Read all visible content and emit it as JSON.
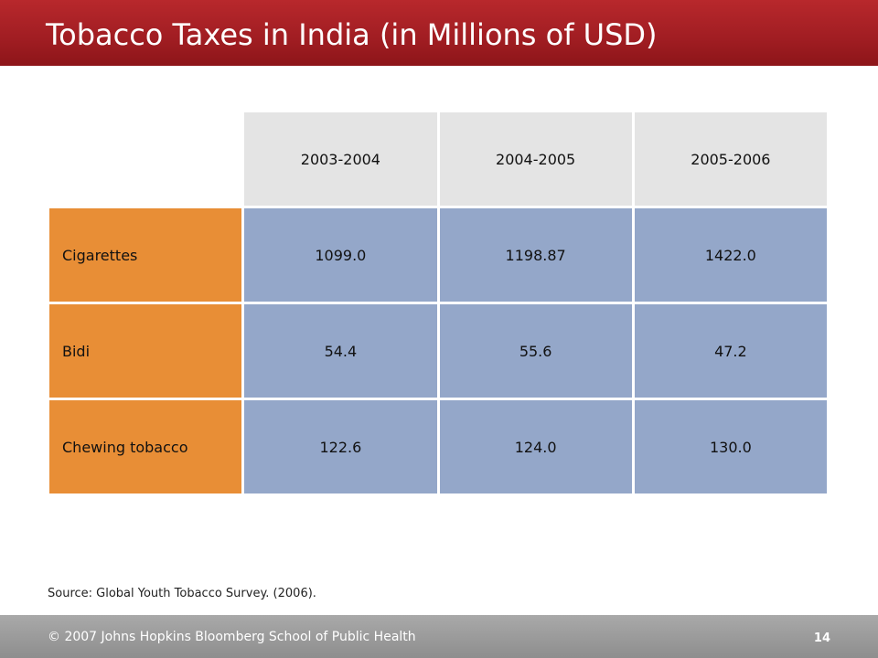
{
  "slide": {
    "title": "Tobacco Taxes in India (in Millions of USD)",
    "source": "Source: Global Youth Tobacco Survey. (2006).",
    "footer": "© 2007 Johns Hopkins Bloomberg School of Public Health",
    "page_number": "14"
  },
  "table": {
    "columns": [
      "2003-2004",
      "2004-2005",
      "2005-2006"
    ],
    "rows": [
      {
        "label": "Cigarettes",
        "values": [
          "1099.0",
          "1198.87",
          "1422.0"
        ]
      },
      {
        "label": "Bidi",
        "values": [
          "54.4",
          "55.6",
          "47.2"
        ]
      },
      {
        "label": "Chewing tobacco",
        "values": [
          "122.6",
          "124.0",
          "130.0"
        ]
      }
    ]
  },
  "colors": {
    "header_bar": "#a01d22",
    "row_label": "#e88e36",
    "cell_value": "#94a7c9",
    "column_header": "#e4e4e4",
    "footer_bar": "#999999"
  }
}
